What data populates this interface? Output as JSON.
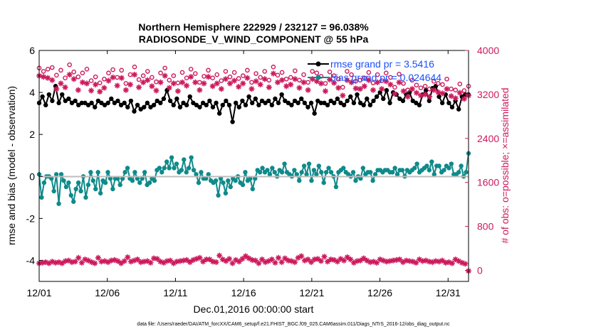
{
  "chart_data": {
    "type": "line",
    "title_line1": "Northern Hemisphere 222929 / 232127 = 96.038%",
    "title_line2": "RADIOSONDE_V_WIND_COMPONENT @ 55 hPa",
    "xlabel": "Dec.01,2016 00:00:00 start",
    "ylabel_left": "rmse and bias (model - observation)",
    "ylabel_right": "# of obs: o=possible; ×=assimilated",
    "x_ticks": [
      "12/01",
      "12/06",
      "12/11",
      "12/16",
      "12/21",
      "12/26",
      "12/31"
    ],
    "x_tick_days": [
      0,
      5,
      10,
      15,
      20,
      25,
      30
    ],
    "xlim_days": [
      0,
      31.5
    ],
    "ylim_left": [
      -5,
      6
    ],
    "yticks_left": [
      "6",
      "4",
      "2",
      "0",
      "-2",
      "-4"
    ],
    "yticks_left_values": [
      6,
      4,
      2,
      0,
      -2,
      -4
    ],
    "ylim_right": [
      -200,
      4000
    ],
    "yticks_right": [
      "4000",
      "3200",
      "2400",
      "1600",
      "800",
      "0"
    ],
    "yticks_right_values": [
      4000,
      3200,
      2400,
      1600,
      800,
      0
    ],
    "legend": [
      {
        "name": "rmse grand pr = 3.5416",
        "color": "#000000"
      },
      {
        "name": "bias grand pr = 0.024644",
        "color": "#0f8a8a"
      }
    ],
    "series": [
      {
        "name": "rmse",
        "axis": "left",
        "color": "#000000",
        "values": [
          3.5,
          3.8,
          3.4,
          3.9,
          3.6,
          4.3,
          3.5,
          3.9,
          3.6,
          3.7,
          3.5,
          3.6,
          3.4,
          3.5,
          3.5,
          3.4,
          3.5,
          3.3,
          3.6,
          3.5,
          3.4,
          3.5,
          3.7,
          3.5,
          3.6,
          3.4,
          3.5,
          3.3,
          3.6,
          3.1,
          3.4,
          3.2,
          3.3,
          3.5,
          3.3,
          3.4,
          3.6,
          3.5,
          3.7,
          4.1,
          3.6,
          3.4,
          3.7,
          3.3,
          3.5,
          3.4,
          3.8,
          3.5,
          3.4,
          3.3,
          3.5,
          3.4,
          3.6,
          3.3,
          3.5,
          3.0,
          3.4,
          3.6,
          3.4,
          2.6,
          3.5,
          3.3,
          3.6,
          3.4,
          3.8,
          3.5,
          3.7,
          3.4,
          3.6,
          3.5,
          3.6,
          3.4,
          3.7,
          3.5,
          3.9,
          3.6,
          3.5,
          3.4,
          3.6,
          3.5,
          3.7,
          3.5,
          3.3,
          3.5,
          3.0,
          3.6,
          3.5,
          3.5,
          3.4,
          3.6,
          3.5,
          3.7,
          3.5,
          3.4,
          3.6,
          3.8,
          3.5,
          3.9,
          3.5,
          3.4,
          3.7,
          3.4,
          3.6,
          3.8,
          4.0,
          3.7,
          4.1,
          3.5,
          4.0,
          3.9,
          3.7,
          3.6,
          3.9,
          4.0,
          3.6,
          3.5,
          3.4,
          3.9,
          4.1,
          3.6,
          4.2,
          4.3,
          3.8,
          3.5,
          3.9,
          3.5,
          3.3,
          3.6,
          3.2,
          3.8,
          3.9,
          3.9
        ]
      },
      {
        "name": "bias",
        "axis": "left",
        "color": "#0f8a8a",
        "values": [
          0.1,
          -1.0,
          -0.3,
          0.0,
          0.0,
          -0.1,
          -0.7,
          0.1,
          -1.3,
          0.1,
          -0.2,
          -0.5,
          -0.3,
          -0.9,
          -1.2,
          -0.6,
          -0.3,
          -0.7,
          0.0,
          -1.0,
          -0.4,
          0.2,
          -0.2,
          -0.6,
          0.2,
          -0.8,
          -0.2,
          -0.3,
          0.2,
          -0.1,
          -0.6,
          -0.1,
          -0.1,
          -0.4,
          -0.1,
          0.2,
          0.4,
          -0.1,
          -0.2,
          0.2,
          -0.1,
          -0.3,
          -0.1,
          0.2,
          -0.4,
          -0.3,
          -0.1,
          -0.2,
          0.3,
          0.4,
          0.2,
          0.4,
          0.7,
          0.4,
          0.9,
          0.4,
          0.6,
          0.2,
          0.3,
          0.8,
          0.2,
          0.4,
          0.9,
          0.3,
          0.1,
          -0.3,
          0.2,
          -0.1,
          -0.1,
          0.1,
          -0.2,
          -0.3,
          -0.2,
          -0.9,
          -0.1,
          -0.3,
          -0.8,
          -0.2,
          -0.5,
          -0.1,
          -0.2,
          0.0,
          -0.3,
          -0.4,
          0.2,
          -0.2,
          -0.1,
          -0.6,
          -0.1,
          0.3,
          0.2,
          0.4,
          0.2,
          0.3,
          0.1,
          0.4,
          0.2,
          0.0,
          0.3,
          0.2,
          0.6,
          0.2,
          0.1,
          0.0,
          0.3,
          0.1,
          -0.2,
          0.2,
          0.5,
          0.1,
          0.6,
          -0.2,
          0.3,
          0.1,
          0.5,
          0.2,
          -0.3,
          0.2,
          0.4,
          0.2,
          0.0,
          -0.5,
          0.2,
          0.3,
          0.4,
          0.2,
          0.1,
          0.0,
          0.2,
          -0.2,
          0.0,
          -0.1,
          0.4,
          0.1,
          0.2,
          0.2,
          -0.2,
          0.1,
          0.3,
          0.3,
          0.2,
          0.3,
          0.3,
          0.2,
          0.2,
          0.4,
          0.1,
          0.3,
          0.3,
          0.0,
          0.3,
          0.2,
          0.3,
          0.4,
          0.6,
          0.2,
          0.3,
          0.4,
          0.5,
          0.3,
          0.7,
          0.1,
          0.5,
          0.5,
          0.2,
          0.3,
          0.5,
          0.4,
          0.6,
          0.1,
          0.1,
          0.2,
          0.5,
          0.0,
          0.2,
          1.1
        ]
      },
      {
        "name": "obs possible",
        "axis": "right",
        "color": "#cc1a5c",
        "marker": "o",
        "values": [
          3680,
          3620,
          3660,
          3690,
          3550,
          3640,
          3500,
          3740,
          3610,
          3520,
          3590,
          3660,
          3450,
          3520,
          3410,
          3480,
          3590,
          3650,
          3510,
          3640,
          3400,
          3560,
          3700,
          3470,
          3540,
          3620,
          3510,
          3430,
          3590,
          3680,
          3460,
          3540,
          3410,
          3600,
          3500,
          3660,
          3580,
          3420,
          3530,
          3640,
          3500,
          3560,
          3450,
          3620,
          3520,
          3600,
          3490,
          3540,
          3640,
          3420,
          3580,
          3510,
          3620,
          3460,
          3700,
          3550,
          3600,
          3480,
          3510,
          3630,
          3460,
          3560,
          3420,
          3620,
          3590,
          3530,
          3400,
          3610,
          3540,
          3480,
          3330,
          3620,
          3560,
          3440,
          3460,
          3500,
          3600,
          3410,
          3560,
          3450,
          3590,
          3510,
          3330,
          3570,
          3400,
          3280,
          3460,
          3370,
          3320,
          3350,
          3300,
          3440,
          3400,
          3380,
          3480,
          3300,
          3280,
          3390,
          3270,
          3350
        ]
      },
      {
        "name": "obs assimilated",
        "axis": "right",
        "color": "#cc1a5c",
        "marker": "*",
        "values": [
          3540,
          3520,
          3500,
          3460,
          3300,
          3400,
          3330,
          3560,
          3480,
          3280,
          3420,
          3400,
          3270,
          3380,
          3250,
          3320,
          3450,
          3510,
          3360,
          3500,
          3280,
          3380,
          3560,
          3330,
          3420,
          3460,
          3350,
          3270,
          3420,
          3540,
          3320,
          3400,
          3260,
          3420,
          3360,
          3520,
          3420,
          3280,
          3400,
          3520,
          3350,
          3400,
          3300,
          3480,
          3400,
          3450,
          3340,
          3400,
          3500,
          3300,
          3440,
          3380,
          3480,
          3330,
          3580,
          3420,
          3460,
          3350,
          3380,
          3480,
          3320,
          3420,
          3280,
          3480,
          3440,
          3400,
          3260,
          3470,
          3410,
          3320,
          3180,
          3460,
          3420,
          3310,
          3300,
          3350,
          3460,
          3280,
          3420,
          3300,
          3440,
          3380,
          3210,
          3420,
          3260,
          3160,
          3300,
          3230,
          3180,
          3200,
          3160,
          3280,
          3240,
          3220,
          3300,
          3170,
          3130,
          3230,
          3120,
          3180
        ]
      },
      {
        "name": "obs count bottom",
        "axis": "right",
        "color": "#cc1a5c",
        "marker": "*",
        "values": [
          130,
          140,
          150,
          130,
          160,
          140,
          150,
          130,
          170,
          180,
          150,
          160,
          230,
          140,
          200,
          180,
          150,
          130,
          230,
          160,
          170,
          150,
          180,
          190,
          170,
          130,
          170,
          240,
          160,
          180,
          200,
          150,
          160,
          170,
          140,
          220,
          210,
          160,
          140,
          170,
          180,
          130,
          160,
          170,
          180,
          190,
          150,
          190,
          210,
          230,
          160,
          200,
          200,
          160,
          150,
          270,
          200,
          170,
          210,
          130,
          190,
          160,
          210,
          260,
          220,
          190,
          180,
          130,
          200,
          150,
          170,
          200,
          140,
          230,
          150,
          220,
          180,
          170,
          150,
          230,
          260,
          180,
          200,
          150,
          200,
          210,
          170,
          250,
          160,
          200,
          190,
          160,
          210,
          180,
          240,
          200,
          140,
          170,
          180,
          220,
          180,
          150,
          160,
          140,
          200,
          180,
          160,
          170,
          180,
          190,
          200,
          150,
          180,
          170,
          160,
          140,
          200,
          170,
          180,
          160,
          150,
          170,
          160,
          180,
          140,
          150,
          130,
          200,
          170,
          140,
          120,
          -10
        ]
      }
    ],
    "footer": "data file: /Users/raeder/DAI/ATM_forcXX/CAM6_setup/f.e21.FHIST_BGC.f09_025.CAM6assim.011/Diags_NTrS_2016-12/obs_diag_output.nc"
  }
}
